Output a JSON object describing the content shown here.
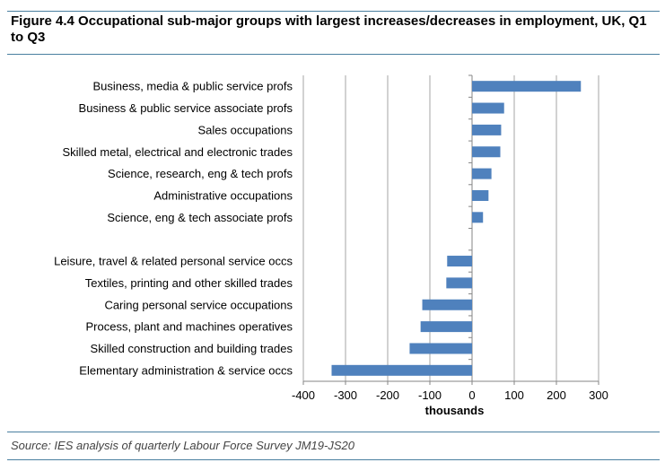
{
  "title": "Figure 4.4 Occupational sub-major groups with largest increases/decreases in employment, UK, Q1 to Q3",
  "source": "Source: IES analysis of quarterly Labour Force Survey JM19-JS20",
  "colors": {
    "bar": "#4f81bd",
    "grid": "#a6a6a6",
    "rule": "#4a7fa0"
  },
  "chart_data": {
    "type": "bar",
    "orientation": "horizontal",
    "title": "",
    "xlabel": "thousands",
    "ylabel": "",
    "xlim": [
      -400,
      300
    ],
    "xticks": [
      -400,
      -300,
      -200,
      -100,
      0,
      100,
      200,
      300
    ],
    "grid": true,
    "categories": [
      "Business, media & public service profs",
      "Business & public service associate profs",
      "Sales occupations",
      "Skilled metal, electrical and electronic trades",
      "Science, research, eng & tech profs",
      "Administrative occupations",
      "Science, eng & tech associate profs",
      "",
      "Leisure, travel & related personal service occs",
      "Textiles, printing and other skilled trades",
      "Caring personal service occupations",
      "Process, plant and machines operatives",
      "Skilled construction and building trades",
      "Elementary administration & service occs"
    ],
    "values": [
      258,
      76,
      69,
      67,
      46,
      39,
      26,
      null,
      -59,
      -61,
      -118,
      -122,
      -148,
      -333
    ]
  }
}
